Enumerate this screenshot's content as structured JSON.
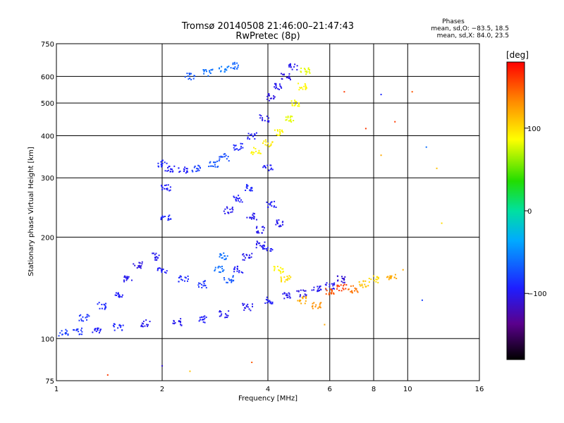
{
  "chart_data": {
    "type": "scatter",
    "title": "Tromsø 20140508 21:46:00–21:47:43",
    "subtitle": "RwPretec (8p)",
    "xlabel": "Frequency [MHz]",
    "ylabel": "Stationary phase Virtual Height [km]",
    "x_scale": "log",
    "y_scale": "log",
    "xlim": [
      1,
      16
    ],
    "ylim": [
      75,
      750
    ],
    "x_ticks": [
      1,
      2,
      4,
      6,
      8,
      10,
      16
    ],
    "x_tick_labels": [
      "1",
      "2",
      "4",
      "6",
      "8",
      "10",
      "16"
    ],
    "y_ticks": [
      75,
      100,
      200,
      300,
      400,
      500,
      600,
      750
    ],
    "y_tick_labels": [
      "75",
      "100",
      "200",
      "300",
      "400",
      "500",
      "600",
      "750"
    ],
    "grid": true,
    "phase_legend": {
      "heading": "Phases",
      "line1": "mean, sd,O: −83.5, 18.5",
      "line2": "mean, sd,X:  84.0, 23.5"
    },
    "colorbar": {
      "label": "[deg]",
      "range": [
        -180,
        180
      ],
      "ticks": [
        100,
        0,
        -100
      ],
      "tick_labels": [
        "100",
        "0",
        "−100"
      ],
      "colormap": "rainbow"
    },
    "series": [
      {
        "trace": "low-O-trace",
        "points": [
          [
            1.05,
            104,
            -80
          ],
          [
            1.15,
            105,
            -85
          ],
          [
            1.3,
            106,
            -95
          ],
          [
            1.5,
            108,
            -90
          ],
          [
            1.8,
            111,
            -100
          ],
          [
            2.2,
            112,
            -100
          ],
          [
            2.6,
            114,
            -95
          ],
          [
            3.0,
            118,
            -100
          ],
          [
            3.5,
            124,
            -100
          ],
          [
            4.0,
            130,
            -95
          ],
          [
            4.5,
            134,
            -100
          ],
          [
            5.0,
            136,
            -105
          ],
          [
            5.5,
            140,
            -100
          ],
          [
            6.0,
            143,
            -100
          ],
          [
            6.5,
            150,
            -110
          ]
        ]
      },
      {
        "trace": "low-diffuse-band",
        "points": [
          [
            1.2,
            115,
            -85
          ],
          [
            1.35,
            125,
            -90
          ],
          [
            1.5,
            135,
            -95
          ],
          [
            1.6,
            150,
            -100
          ],
          [
            1.7,
            165,
            -105
          ],
          [
            1.9,
            175,
            -100
          ],
          [
            2.0,
            160,
            -95
          ],
          [
            2.3,
            150,
            -90
          ],
          [
            2.6,
            145,
            -85
          ],
          [
            2.9,
            160,
            -60
          ],
          [
            3.0,
            175,
            -60
          ],
          [
            3.1,
            150,
            -70
          ],
          [
            3.3,
            160,
            -95
          ],
          [
            3.5,
            175,
            -100
          ],
          [
            3.8,
            190,
            -100
          ],
          [
            4.0,
            185,
            -95
          ]
        ]
      },
      {
        "trace": "low-X-trace",
        "points": [
          [
            4.3,
            160,
            90
          ],
          [
            4.5,
            150,
            100
          ],
          [
            5.0,
            130,
            120
          ],
          [
            5.5,
            125,
            130
          ],
          [
            6.0,
            138,
            150
          ],
          [
            6.5,
            142,
            160
          ],
          [
            7.0,
            140,
            140
          ],
          [
            7.5,
            145,
            110
          ],
          [
            8.0,
            150,
            100
          ],
          [
            9.0,
            152,
            120
          ]
        ]
      },
      {
        "trace": "F-O-cusp",
        "points": [
          [
            2.0,
            330,
            -90
          ],
          [
            2.1,
            320,
            -95
          ],
          [
            2.3,
            315,
            -95
          ],
          [
            2.5,
            320,
            -80
          ],
          [
            2.8,
            330,
            -70
          ],
          [
            3.0,
            345,
            -75
          ],
          [
            3.3,
            370,
            -90
          ],
          [
            3.6,
            400,
            -95
          ],
          [
            3.9,
            450,
            -100
          ],
          [
            4.1,
            520,
            -105
          ],
          [
            4.3,
            560,
            -100
          ],
          [
            4.5,
            600,
            -105
          ],
          [
            4.7,
            640,
            -100
          ]
        ]
      },
      {
        "trace": "F-X-trace",
        "points": [
          [
            3.7,
            360,
            90
          ],
          [
            4.0,
            380,
            95
          ],
          [
            4.3,
            410,
            90
          ],
          [
            4.6,
            450,
            80
          ],
          [
            4.8,
            500,
            85
          ],
          [
            5.0,
            560,
            90
          ],
          [
            5.1,
            620,
            80
          ]
        ]
      },
      {
        "trace": "spread-F",
        "points": [
          [
            2.05,
            230,
            -90
          ],
          [
            2.05,
            280,
            -95
          ],
          [
            3.1,
            240,
            -100
          ],
          [
            3.3,
            260,
            -95
          ],
          [
            3.5,
            280,
            -90
          ],
          [
            3.6,
            230,
            -100
          ],
          [
            3.8,
            210,
            -100
          ],
          [
            4.1,
            250,
            -95
          ],
          [
            4.3,
            220,
            -100
          ],
          [
            4.0,
            320,
            -95
          ]
        ]
      },
      {
        "trace": "upper-fragment",
        "points": [
          [
            2.4,
            600,
            -70
          ],
          [
            2.7,
            615,
            -60
          ],
          [
            3.0,
            630,
            -55
          ],
          [
            3.2,
            645,
            -65
          ]
        ]
      },
      {
        "trace": "sparse-noise",
        "points": [
          [
            1.4,
            78,
            160
          ],
          [
            2.0,
            83,
            -110
          ],
          [
            2.4,
            80,
            110
          ],
          [
            3.6,
            85,
            150
          ],
          [
            5.8,
            110,
            120
          ],
          [
            6.6,
            540,
            160
          ],
          [
            7.6,
            420,
            160
          ],
          [
            8.4,
            530,
            -90
          ],
          [
            8.4,
            350,
            120
          ],
          [
            9.2,
            440,
            160
          ],
          [
            10.3,
            540,
            150
          ],
          [
            11.3,
            370,
            -60
          ],
          [
            12.1,
            320,
            110
          ],
          [
            12.5,
            220,
            100
          ],
          [
            11.0,
            130,
            -80
          ],
          [
            9.7,
            160,
            120
          ]
        ]
      }
    ]
  }
}
